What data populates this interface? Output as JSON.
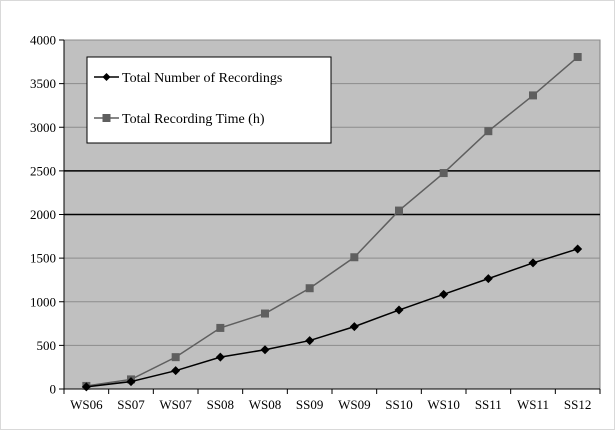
{
  "chart_data": {
    "type": "line",
    "categories": [
      "WS06",
      "SS07",
      "WS07",
      "SS08",
      "WS08",
      "SS09",
      "WS09",
      "SS10",
      "WS10",
      "SS11",
      "WS11",
      "SS12"
    ],
    "series": [
      {
        "name": "Total Number of Recordings",
        "marker": "diamond",
        "color": "#000000",
        "values": [
          25,
          85,
          210,
          365,
          450,
          555,
          715,
          905,
          1085,
          1265,
          1445,
          1605
        ]
      },
      {
        "name": "Total Recording Time (h)",
        "marker": "square",
        "color": "#5f5f5f",
        "values": [
          35,
          110,
          365,
          700,
          865,
          1155,
          1510,
          2045,
          2475,
          2955,
          3365,
          3805
        ]
      }
    ],
    "ylim": [
      0,
      4000
    ],
    "yticks": [
      0,
      500,
      1000,
      1500,
      2000,
      2500,
      3000,
      3500,
      4000
    ],
    "major_gridlines": [
      2000,
      2500
    ],
    "grid": true,
    "legend": "top-left",
    "plot_background": "#c0c0c0",
    "title": "",
    "xlabel": "",
    "ylabel": ""
  }
}
